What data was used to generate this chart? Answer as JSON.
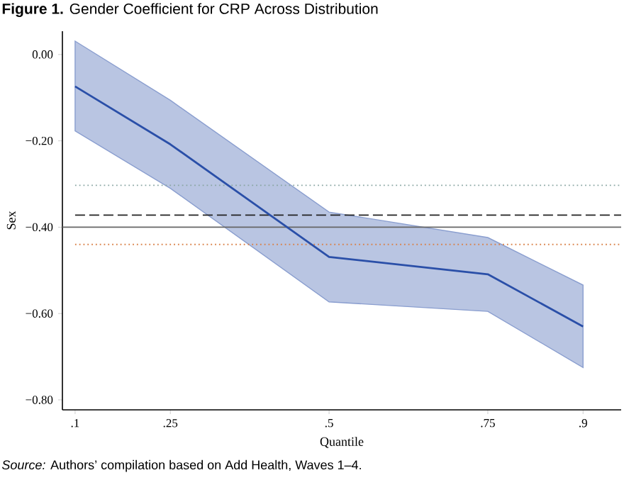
{
  "chart_data": {
    "type": "line",
    "title": "**Figure 1.** Gender Coefficient for CRP Across Distribution",
    "xlabel": "Quantile",
    "ylabel": "Sex",
    "annotations": [
      "*Source:* Authors’ compilation based on Add Health, Waves 1–4."
    ],
    "x": [
      0.1,
      0.25,
      0.5,
      0.75,
      0.9
    ],
    "series": [
      {
        "color": "#2a4fa8",
        "values": [
          -0.074,
          -0.208,
          -0.469,
          -0.509,
          -0.63
        ],
        "lower": [
          -0.177,
          -0.31,
          -0.573,
          -0.595,
          -0.725
        ],
        "upper": [
          0.031,
          -0.106,
          -0.365,
          -0.424,
          -0.534
        ]
      }
    ],
    "xlim": [
      0.08,
      0.96
    ],
    "ylim": [
      -0.823,
      0.054
    ],
    "xticks": [
      {
        "value": 0.1,
        "label": ".1"
      },
      {
        "value": 0.25,
        "label": ".25"
      },
      {
        "value": 0.5,
        "label": ".5"
      },
      {
        "value": 0.75,
        "label": ".75"
      },
      {
        "value": 0.9,
        "label": ".9"
      }
    ],
    "yticks": [
      {
        "value": 0,
        "label": "0.00"
      },
      {
        "value": -0.2,
        "label": "−0.20"
      },
      {
        "value": -0.4,
        "label": "−0.40"
      },
      {
        "value": -0.6,
        "label": "−0.60"
      },
      {
        "value": -0.8,
        "label": "−0.80"
      }
    ],
    "ref_lines": [
      {
        "axis": "y",
        "value": -0.303,
        "color": "#8aa6a3",
        "line_style": "dotted"
      },
      {
        "axis": "y",
        "value": -0.372,
        "color": "#222222",
        "line_style": "dashed"
      },
      {
        "axis": "y",
        "value": -0.4,
        "color": "#666666",
        "line_style": "solid"
      },
      {
        "axis": "y",
        "value": -0.44,
        "color": "#d9824a",
        "line_style": "dotted"
      }
    ],
    "grid": false,
    "marker": "none",
    "line_style": "solid"
  }
}
